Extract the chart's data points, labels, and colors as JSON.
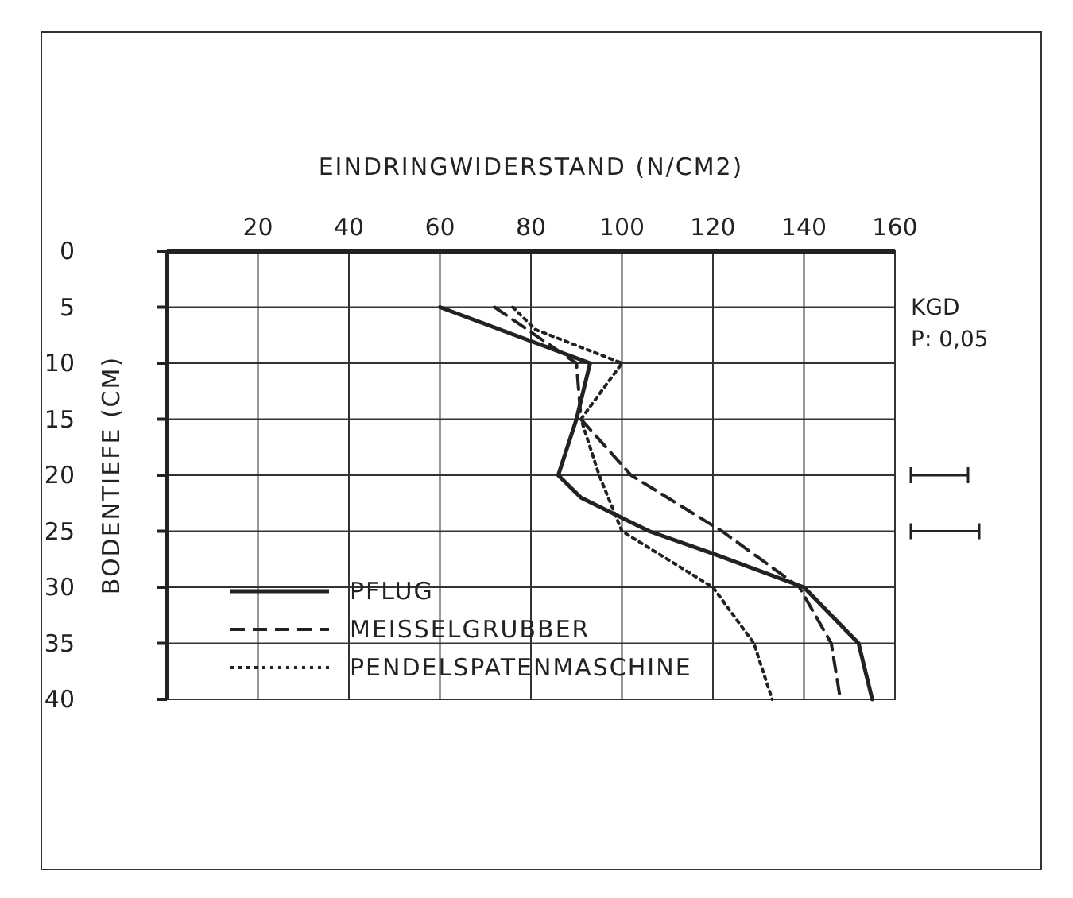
{
  "chart_data": {
    "type": "line",
    "xlabel": "EINDRINGWIDERSTAND (N/CM2)",
    "ylabel": "BODENTIEFE (CM)",
    "xlim": [
      0,
      160
    ],
    "xticks": [
      20,
      40,
      60,
      80,
      100,
      120,
      140,
      160
    ],
    "ylim": [
      40,
      0
    ],
    "yticks": [
      0,
      5,
      10,
      15,
      20,
      25,
      30,
      35,
      40
    ],
    "grid": true,
    "legend": "bottom left",
    "marker": "none",
    "annotations": [
      "KGD",
      "P: 0,05"
    ],
    "series": [
      {
        "name": "PFLUG",
        "color": "#222222",
        "line_style": "solid",
        "x": [
          60,
          93,
          90,
          86,
          91,
          106,
          120,
          140,
          152,
          155
        ],
        "values": [
          5,
          10,
          15,
          20,
          22,
          25,
          27,
          30,
          35,
          40
        ]
      },
      {
        "name": "MEISSELGRUBBER",
        "color": "#222222",
        "line_style": "dashed",
        "x": [
          72,
          90,
          91,
          102,
          122,
          139,
          146,
          148
        ],
        "values": [
          5,
          10,
          15,
          20,
          25,
          30,
          35,
          40
        ]
      },
      {
        "name": "PENDELSPATENMASCHINE",
        "color": "#222222",
        "line_style": "dotted",
        "x": [
          76,
          81,
          100,
          91,
          95,
          100,
          120,
          129,
          133
        ],
        "values": [
          5,
          7,
          10,
          15,
          20,
          25,
          30,
          35,
          40
        ]
      }
    ]
  }
}
